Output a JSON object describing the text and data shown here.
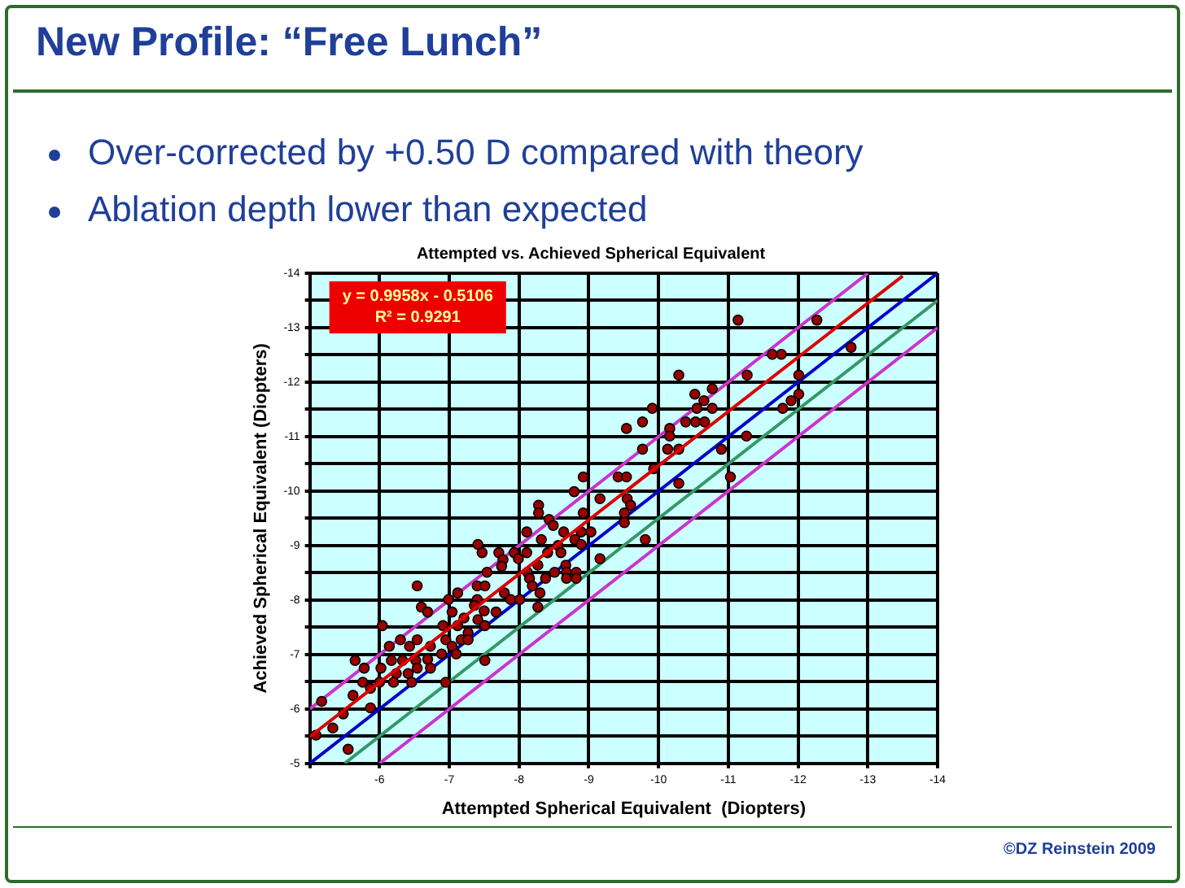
{
  "chart_data": {
    "type": "scatter",
    "title": "Attempted vs. Achieved Spherical Equivalent",
    "xlabel": "Attempted Spherical Equivalent  (Diopters)",
    "ylabel": "Achieved Spherical Equivalent (Diopters)",
    "annotations": [
      "New Profile: “Free Lunch”",
      "Over-corrected by +0.50 D compared with theory",
      "Ablation depth lower than expected",
      "y = 0.9958x - 0.5106",
      "R² = 0.9291",
      "©DZ Reinstein 2009"
    ],
    "xlim": [
      -5,
      -14
    ],
    "xticks": [
      {
        "value": -5,
        "label": null
      },
      -6,
      -7,
      -8,
      -9,
      -10,
      -11,
      -12,
      -13,
      -14
    ],
    "ylim": [
      -5,
      -14
    ],
    "yticks": [
      -5,
      {
        "value": -5.5,
        "label": null
      },
      -6,
      {
        "value": -6.5,
        "label": null
      },
      -7,
      {
        "value": -7.5,
        "label": null
      },
      -8,
      {
        "value": -8.5,
        "label": null
      },
      -9,
      {
        "value": -9.5,
        "label": null
      },
      -10,
      {
        "value": -10.5,
        "label": null
      },
      -11,
      {
        "value": -11.5,
        "label": null
      },
      -12,
      {
        "value": -12.5,
        "label": null
      },
      -13,
      {
        "value": -13.5,
        "label": null
      },
      -14
    ],
    "grid": true,
    "legend": false,
    "series": [
      {
        "type": "line",
        "color": "#dd0000",
        "marker": "none",
        "line_style": "solid",
        "x": [
          -5,
          -13.5
        ],
        "values": [
          -5.49,
          -13.95
        ]
      },
      {
        "color": "#990000",
        "marker": "circle",
        "x": [
          -11.14,
          -12.27,
          -12.76,
          -11.63,
          -11.76,
          -10.29,
          -11.27,
          -12.01,
          -10.77,
          -12.01,
          -10.52,
          -10.65,
          -11.9,
          -11.78,
          -9.91,
          -10.55,
          -10.77,
          -9.77,
          -10.39,
          -10.53,
          -10.66,
          -9.54,
          -10.16,
          -10.16,
          -11.26,
          -9.77,
          -10.13,
          -10.29,
          -10.9,
          -9.93,
          -8.92,
          -9.42,
          -9.54,
          -11.03,
          -10.29,
          -8.79,
          -9.16,
          -9.55,
          -8.28,
          -8.28,
          -9.6,
          -9.51,
          -8.43,
          -8.92,
          -8.49,
          -9.51,
          -8.11,
          -8.64,
          -8.89,
          -9.03,
          -8.32,
          -8.8,
          -9.81,
          -8.56,
          -8.89,
          -7.41,
          -7.47,
          -7.71,
          -7.93,
          -8.11,
          -8.41,
          -8.6,
          -9.16,
          -7.77,
          -7.99,
          -7.75,
          -8.27,
          -8.67,
          -7.54,
          -8.12,
          -8.51,
          -8.68,
          -8.82,
          -8.15,
          -8.38,
          -8.68,
          -8.82,
          -6.54,
          -7.4,
          -7.51,
          -8.19,
          -7.79,
          -8.3,
          -7.12,
          -6.99,
          -7.4,
          -7.88,
          -8.01,
          -7.36,
          -6.6,
          -8.27,
          -7.5,
          -7.67,
          -6.69,
          -7.04,
          -7.21,
          -7.41,
          -6.04,
          -6.91,
          -7.12,
          -7.51,
          -7.27,
          -6.3,
          -6.54,
          -6.95,
          -7.17,
          -7.27,
          -6.14,
          -6.43,
          -6.73,
          -7.04,
          -6.89,
          -7.1,
          -6.69,
          -5.65,
          -6.17,
          -6.33,
          -6.52,
          -7.51,
          -5.78,
          -6.02,
          -6.54,
          -6.73,
          -6.24,
          -6.41,
          -5.76,
          -6.0,
          -6.2,
          -6.46,
          -6.95,
          -5.87,
          -5.62,
          -5.87,
          -5.48,
          -5.17,
          -5.33,
          -5.55,
          -5.09
        ],
        "values": [
          -13.14,
          -13.14,
          -12.64,
          -12.51,
          -12.51,
          -12.13,
          -12.13,
          -12.13,
          -11.88,
          -11.78,
          -11.78,
          -11.66,
          -11.66,
          -11.52,
          -11.52,
          -11.52,
          -11.52,
          -11.27,
          -11.27,
          -11.27,
          -11.27,
          -11.15,
          -11.15,
          -11.01,
          -11.01,
          -10.77,
          -10.77,
          -10.77,
          -10.77,
          -10.41,
          -10.26,
          -10.26,
          -10.26,
          -10.26,
          -10.14,
          -9.99,
          -9.86,
          -9.86,
          -9.74,
          -9.6,
          -9.74,
          -9.6,
          -9.48,
          -9.6,
          -9.37,
          -9.42,
          -9.25,
          -9.25,
          -9.25,
          -9.25,
          -9.11,
          -9.11,
          -9.11,
          -9.0,
          -9.02,
          -9.02,
          -8.87,
          -8.87,
          -8.87,
          -8.87,
          -8.87,
          -8.87,
          -8.76,
          -8.74,
          -8.76,
          -8.62,
          -8.64,
          -8.64,
          -8.51,
          -8.51,
          -8.51,
          -8.51,
          -8.51,
          -8.4,
          -8.4,
          -8.4,
          -8.4,
          -8.26,
          -8.26,
          -8.26,
          -8.26,
          -8.13,
          -8.13,
          -8.13,
          -8.01,
          -8.01,
          -8.01,
          -8.01,
          -7.9,
          -7.87,
          -7.87,
          -7.8,
          -7.78,
          -7.78,
          -7.78,
          -7.67,
          -7.64,
          -7.53,
          -7.53,
          -7.53,
          -7.53,
          -7.4,
          -7.27,
          -7.27,
          -7.27,
          -7.27,
          -7.27,
          -7.15,
          -7.15,
          -7.15,
          -7.15,
          -7.01,
          -7.01,
          -6.91,
          -6.89,
          -6.89,
          -6.89,
          -6.89,
          -6.89,
          -6.75,
          -6.75,
          -6.75,
          -6.75,
          -6.65,
          -6.65,
          -6.49,
          -6.49,
          -6.49,
          -6.49,
          -6.49,
          -6.38,
          -6.25,
          -6.02,
          -5.91,
          -6.14,
          -5.65,
          -5.26,
          -5.52
        ]
      },
      {
        "type": "line",
        "color": "#0000cc",
        "marker": "none",
        "line_style": "solid",
        "x": [
          -5,
          -14
        ],
        "values": [
          -5,
          -14
        ]
      },
      {
        "type": "line",
        "color": "#339966",
        "marker": "none",
        "line_style": "solid",
        "x": [
          -5.5,
          -14
        ],
        "values": [
          -5,
          -13.5
        ]
      },
      {
        "type": "line",
        "color": "#cc33cc",
        "marker": "none",
        "line_style": "solid",
        "x": [
          -5,
          -13
        ],
        "values": [
          -6,
          -14
        ]
      },
      {
        "type": "line",
        "color": "#cc33cc",
        "marker": "none",
        "line_style": "solid",
        "x": [
          -6,
          -14
        ],
        "values": [
          -5,
          -13
        ]
      }
    ]
  }
}
